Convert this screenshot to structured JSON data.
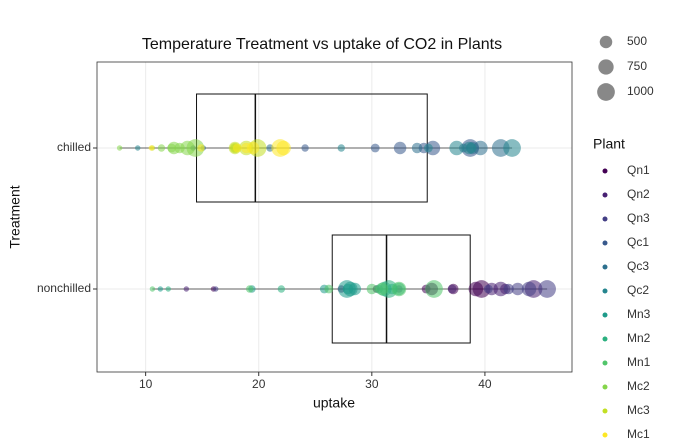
{
  "chart_data": {
    "type": "box-scatter",
    "title": "Temperature Treatment vs uptake of CO2 in Plants",
    "x_label": "uptake",
    "y_label": "Treatment",
    "categories": [
      "chilled",
      "nonchilled"
    ],
    "xlim": [
      5.7,
      47.7
    ],
    "xticks": [
      10,
      20,
      30,
      40
    ],
    "grid": true,
    "boxes": [
      {
        "min": 7.7,
        "q1": 14.5,
        "median": 19.7,
        "q3": 34.9,
        "max": 42.4
      },
      {
        "min": 10.6,
        "q1": 26.5,
        "median": 31.3,
        "q3": 38.7,
        "max": 45.5
      }
    ],
    "size_legend": [
      500,
      750,
      1000
    ],
    "legend_title": "Plant",
    "series": [
      {
        "name": "Qn1",
        "color": "#440154",
        "treatment": "nonchilled",
        "values": [
          16.0,
          30.4,
          34.8,
          37.2,
          35.3,
          39.2,
          39.7
        ],
        "sizes": [
          95,
          175,
          250,
          350,
          500,
          675,
          1000
        ]
      },
      {
        "name": "Qn2",
        "color": "#482173",
        "treatment": "nonchilled",
        "values": [
          13.6,
          27.3,
          37.1,
          41.8,
          40.6,
          41.4,
          44.3
        ],
        "sizes": [
          95,
          175,
          250,
          350,
          500,
          675,
          1000
        ]
      },
      {
        "name": "Qn3",
        "color": "#433E85",
        "treatment": "nonchilled",
        "values": [
          16.2,
          32.4,
          40.3,
          42.1,
          42.9,
          43.9,
          45.5
        ],
        "sizes": [
          95,
          175,
          250,
          350,
          500,
          675,
          1000
        ]
      },
      {
        "name": "Qc1",
        "color": "#38598C",
        "treatment": "chilled",
        "values": [
          14.2,
          24.1,
          30.3,
          34.6,
          32.5,
          35.4,
          38.7
        ],
        "sizes": [
          95,
          175,
          250,
          350,
          500,
          675,
          1000
        ]
      },
      {
        "name": "Qc3",
        "color": "#2D708E",
        "treatment": "chilled",
        "values": [
          15.1,
          21.0,
          38.1,
          34.0,
          38.9,
          39.6,
          41.4
        ],
        "sizes": [
          95,
          175,
          250,
          350,
          500,
          675,
          1000
        ]
      },
      {
        "name": "Qc2",
        "color": "#25858E",
        "treatment": "chilled",
        "values": [
          9.3,
          27.3,
          35.0,
          38.8,
          38.6,
          37.5,
          42.4
        ],
        "sizes": [
          95,
          175,
          250,
          350,
          500,
          675,
          1000
        ]
      },
      {
        "name": "Mn3",
        "color": "#1E9B8A",
        "treatment": "nonchilled",
        "values": [
          11.3,
          19.4,
          25.8,
          27.9,
          28.5,
          28.1,
          27.8
        ],
        "sizes": [
          95,
          175,
          250,
          350,
          500,
          675,
          1000
        ]
      },
      {
        "name": "Mn2",
        "color": "#2BB07F",
        "treatment": "nonchilled",
        "values": [
          12.0,
          22.0,
          30.6,
          31.8,
          32.4,
          31.1,
          31.5
        ],
        "sizes": [
          95,
          175,
          250,
          350,
          500,
          675,
          1000
        ]
      },
      {
        "name": "Mn1",
        "color": "#51C56A",
        "treatment": "nonchilled",
        "values": [
          10.6,
          19.2,
          26.2,
          30.0,
          30.9,
          32.4,
          35.5
        ],
        "sizes": [
          95,
          175,
          250,
          350,
          500,
          675,
          1000
        ]
      },
      {
        "name": "Mc2",
        "color": "#85D54A",
        "treatment": "chilled",
        "values": [
          7.7,
          11.4,
          12.3,
          13.0,
          12.5,
          13.7,
          14.4
        ],
        "sizes": [
          95,
          175,
          250,
          350,
          500,
          675,
          1000
        ]
      },
      {
        "name": "Mc3",
        "color": "#C2DF23",
        "treatment": "chilled",
        "values": [
          10.6,
          18.0,
          17.9,
          17.9,
          17.9,
          18.9,
          19.9
        ],
        "sizes": [
          95,
          175,
          250,
          350,
          500,
          675,
          1000
        ]
      },
      {
        "name": "Mc1",
        "color": "#FDE725",
        "treatment": "chilled",
        "values": [
          10.5,
          14.9,
          18.1,
          18.9,
          19.5,
          22.2,
          21.9
        ],
        "sizes": [
          95,
          175,
          250,
          350,
          500,
          675,
          1000
        ]
      }
    ]
  }
}
